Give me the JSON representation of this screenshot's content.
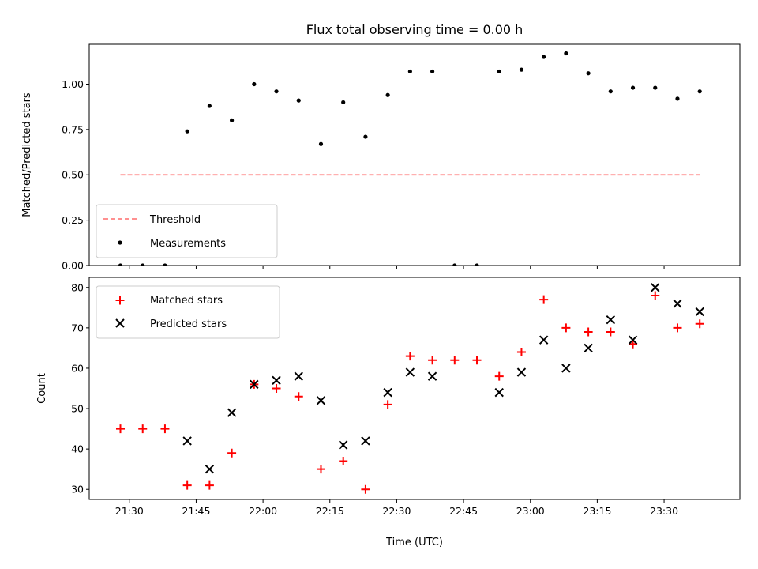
{
  "chart_data": [
    {
      "type": "scatter",
      "title": "Flux total observing time = 0.00 h",
      "xlabel": "",
      "ylabel": "Matched/Predicted stars",
      "ylim": [
        0,
        1.22
      ],
      "yticks": [
        "0.00",
        "0.25",
        "0.50",
        "0.75",
        "1.00"
      ],
      "xlim": [
        "21:21",
        "23:47"
      ],
      "x_tick_labels": [],
      "legend_position": "lower-left",
      "grid": false,
      "series": [
        {
          "name": "Threshold",
          "style": "dashed-line",
          "color": "#ff8080",
          "x": [
            "21:28",
            "23:38"
          ],
          "values": [
            0.5,
            0.5
          ]
        },
        {
          "name": "Measurements",
          "style": "dot",
          "color": "#000000",
          "x": [
            "21:28",
            "21:33",
            "21:38",
            "21:43",
            "21:48",
            "21:53",
            "21:58",
            "22:03",
            "22:08",
            "22:13",
            "22:18",
            "22:23",
            "22:28",
            "22:33",
            "22:38",
            "22:43",
            "22:48",
            "22:53",
            "22:58",
            "23:03",
            "23:08",
            "23:13",
            "23:18",
            "23:23",
            "23:28",
            "23:33",
            "23:38"
          ],
          "values": [
            0.0,
            0.0,
            0.0,
            0.74,
            0.88,
            0.8,
            1.0,
            0.96,
            0.91,
            0.67,
            0.9,
            0.71,
            0.94,
            1.07,
            1.07,
            0.0,
            0.0,
            1.07,
            1.08,
            1.15,
            1.17,
            1.06,
            0.96,
            0.98,
            0.98,
            0.92,
            0.96
          ]
        }
      ]
    },
    {
      "type": "scatter",
      "title": "",
      "xlabel": "Time (UTC)",
      "ylabel": "Count",
      "ylim": [
        27.5,
        82.5
      ],
      "yticks": [
        "30",
        "40",
        "50",
        "60",
        "70",
        "80"
      ],
      "xlim": [
        "21:21",
        "23:47"
      ],
      "x_tick_labels": [
        "21:30",
        "21:45",
        "22:00",
        "22:15",
        "22:30",
        "22:45",
        "23:00",
        "23:15",
        "23:30"
      ],
      "legend_position": "upper-left",
      "grid": false,
      "series": [
        {
          "name": "Matched stars",
          "style": "plus",
          "color": "#ff0000",
          "x": [
            "21:28",
            "21:33",
            "21:38",
            "21:43",
            "21:48",
            "21:53",
            "21:58",
            "22:03",
            "22:08",
            "22:13",
            "22:18",
            "22:23",
            "22:28",
            "22:33",
            "22:38",
            "22:43",
            "22:48",
            "22:53",
            "22:58",
            "23:03",
            "23:08",
            "23:13",
            "23:18",
            "23:23",
            "23:28",
            "23:33",
            "23:38"
          ],
          "values": [
            45,
            45,
            45,
            31,
            31,
            39,
            56,
            55,
            53,
            35,
            37,
            30,
            51,
            63,
            62,
            62,
            62,
            58,
            64,
            77,
            70,
            69,
            69,
            66,
            78,
            70,
            71
          ]
        },
        {
          "name": "Predicted stars",
          "style": "x",
          "color": "#000000",
          "x": [
            "21:43",
            "21:48",
            "21:53",
            "21:58",
            "22:03",
            "22:08",
            "22:13",
            "22:18",
            "22:23",
            "22:28",
            "22:33",
            "22:38",
            "22:53",
            "22:58",
            "23:03",
            "23:08",
            "23:13",
            "23:18",
            "23:23",
            "23:28",
            "23:33",
            "23:38"
          ],
          "values": [
            42,
            35,
            49,
            56,
            57,
            58,
            52,
            41,
            42,
            54,
            59,
            58,
            54,
            59,
            67,
            60,
            65,
            72,
            67,
            80,
            76,
            74
          ]
        }
      ]
    }
  ]
}
